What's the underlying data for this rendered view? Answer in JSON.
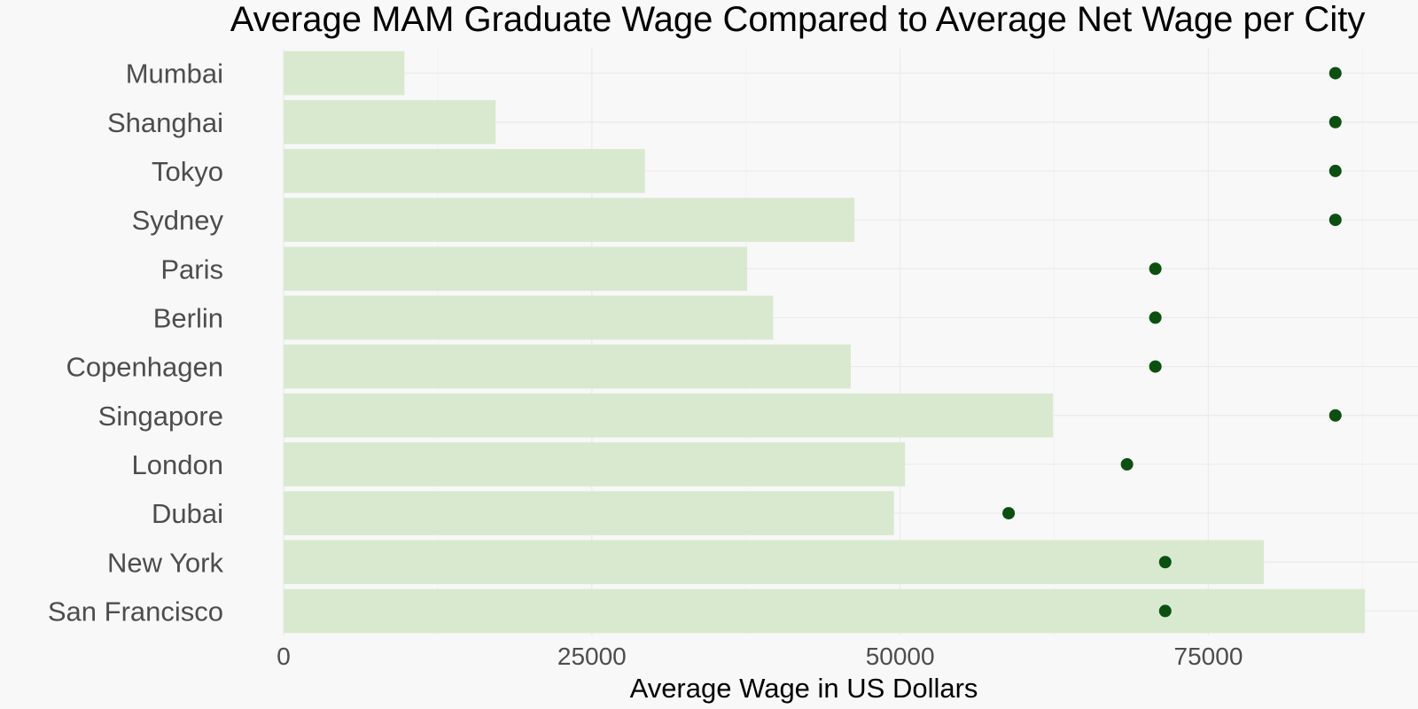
{
  "chart_data": {
    "type": "bar",
    "title": "Average MAM Graduate Wage Compared to Average Net Wage per City",
    "xlabel": "Average Wage in US Dollars",
    "ylabel": "",
    "orientation": "horizontal",
    "categories": [
      "Mumbai",
      "Shanghai",
      "Tokyo",
      "Sydney",
      "Paris",
      "Berlin",
      "Copenhagen",
      "Singapore",
      "London",
      "Dubai",
      "New York",
      "San Francisco"
    ],
    "series": [
      {
        "mark": "bar",
        "color": "#d9e9d0",
        "values": [
          9800,
          17200,
          29300,
          46300,
          37600,
          39700,
          46000,
          62400,
          50400,
          49500,
          79500,
          87700
        ]
      },
      {
        "mark": "point",
        "color": "#0b5010",
        "values": [
          85300,
          85300,
          85300,
          85300,
          70700,
          70700,
          70700,
          85300,
          68400,
          58800,
          71500,
          71500
        ]
      }
    ],
    "xlim": [
      0,
      92000
    ],
    "xticks": [
      0,
      25000,
      50000,
      75000
    ],
    "grid": true,
    "legend": "none"
  }
}
